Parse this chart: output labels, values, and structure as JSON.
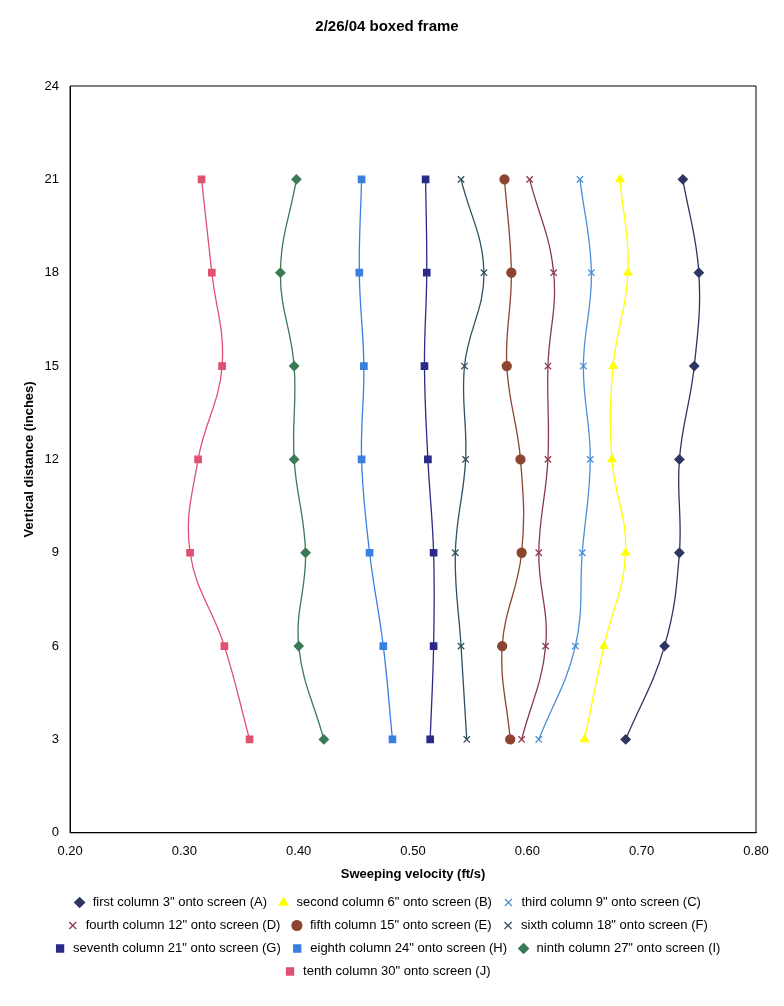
{
  "chart_data": {
    "type": "line",
    "title": "2/26/04 boxed frame",
    "xlabel": "Sweeping velocity (ft/s)",
    "ylabel": "Vertical distance (inches)",
    "xlim": [
      0.2,
      0.8
    ],
    "xticks": [
      {
        "value": 0.2,
        "label": "0.20"
      },
      {
        "value": 0.3,
        "label": "0.30"
      },
      {
        "value": 0.4,
        "label": "0.40"
      },
      {
        "value": 0.5,
        "label": "0.50"
      },
      {
        "value": 0.6,
        "label": "0.60"
      },
      {
        "value": 0.7,
        "label": "0.70"
      },
      {
        "value": 0.8,
        "label": "0.80"
      }
    ],
    "ylim": [
      0,
      24
    ],
    "yticks": [
      0,
      3,
      6,
      9,
      12,
      15,
      18,
      21,
      24
    ],
    "grid": false,
    "legend": "bottom",
    "series": [
      {
        "name": "first column 3\" onto screen (A)",
        "color": "#2e3560",
        "marker": "diamond",
        "x": [
          0.736,
          0.75,
          0.746,
          0.733,
          0.733,
          0.72,
          0.686
        ],
        "values": [
          21,
          18,
          15,
          12,
          9,
          6,
          3
        ]
      },
      {
        "name": "second column 6\" onto screen (B)",
        "color": "#ffff00",
        "marker": "triangle",
        "x": [
          0.681,
          0.688,
          0.675,
          0.674,
          0.686,
          0.667,
          0.65
        ],
        "values": [
          21,
          18,
          15,
          12,
          9,
          6,
          3
        ]
      },
      {
        "name": "third column 9\" onto screen (C)",
        "color": "#4a8fd8",
        "marker": "cross",
        "x": [
          0.646,
          0.656,
          0.649,
          0.655,
          0.648,
          0.642,
          0.61
        ],
        "values": [
          21,
          18,
          15,
          12,
          9,
          6,
          3
        ]
      },
      {
        "name": "fourth column 12\" onto screen (D)",
        "color": "#8b3a4a",
        "marker": "cross",
        "x": [
          0.602,
          0.623,
          0.618,
          0.618,
          0.61,
          0.616,
          0.595
        ],
        "values": [
          21,
          18,
          15,
          12,
          9,
          6,
          3
        ]
      },
      {
        "name": "fifth column 15\" onto screen (E)",
        "color": "#8b4530",
        "marker": "circle",
        "x": [
          0.58,
          0.586,
          0.582,
          0.594,
          0.595,
          0.578,
          0.585
        ],
        "values": [
          21,
          18,
          15,
          12,
          9,
          6,
          3
        ]
      },
      {
        "name": "sixth column 18\" onto screen (F)",
        "color": "#2f5060",
        "marker": "cross",
        "x": [
          0.542,
          0.562,
          0.545,
          0.546,
          0.537,
          0.542,
          0.547
        ],
        "values": [
          21,
          18,
          15,
          12,
          9,
          6,
          3
        ]
      },
      {
        "name": "seventh column 21\" onto screen (G)",
        "color": "#2a2a8a",
        "marker": "square",
        "x": [
          0.511,
          0.512,
          0.51,
          0.513,
          0.518,
          0.518,
          0.515
        ],
        "values": [
          21,
          18,
          15,
          12,
          9,
          6,
          3
        ]
      },
      {
        "name": "eighth column 24\" onto screen (H)",
        "color": "#3a7fe0",
        "marker": "square",
        "x": [
          0.455,
          0.453,
          0.457,
          0.455,
          0.462,
          0.474,
          0.482
        ],
        "values": [
          21,
          18,
          15,
          12,
          9,
          6,
          3
        ]
      },
      {
        "name": "ninth column 27\" onto screen (I)",
        "color": "#3a7a55",
        "marker": "diamond",
        "x": [
          0.398,
          0.384,
          0.396,
          0.396,
          0.406,
          0.4,
          0.422
        ],
        "values": [
          21,
          18,
          15,
          12,
          9,
          6,
          3
        ]
      },
      {
        "name": "tenth column 30\" onto screen (J)",
        "color": "#e05070",
        "marker": "square",
        "x": [
          0.315,
          0.324,
          0.333,
          0.312,
          0.305,
          0.335,
          0.357
        ],
        "values": [
          21,
          18,
          15,
          12,
          9,
          6,
          3
        ]
      }
    ]
  }
}
